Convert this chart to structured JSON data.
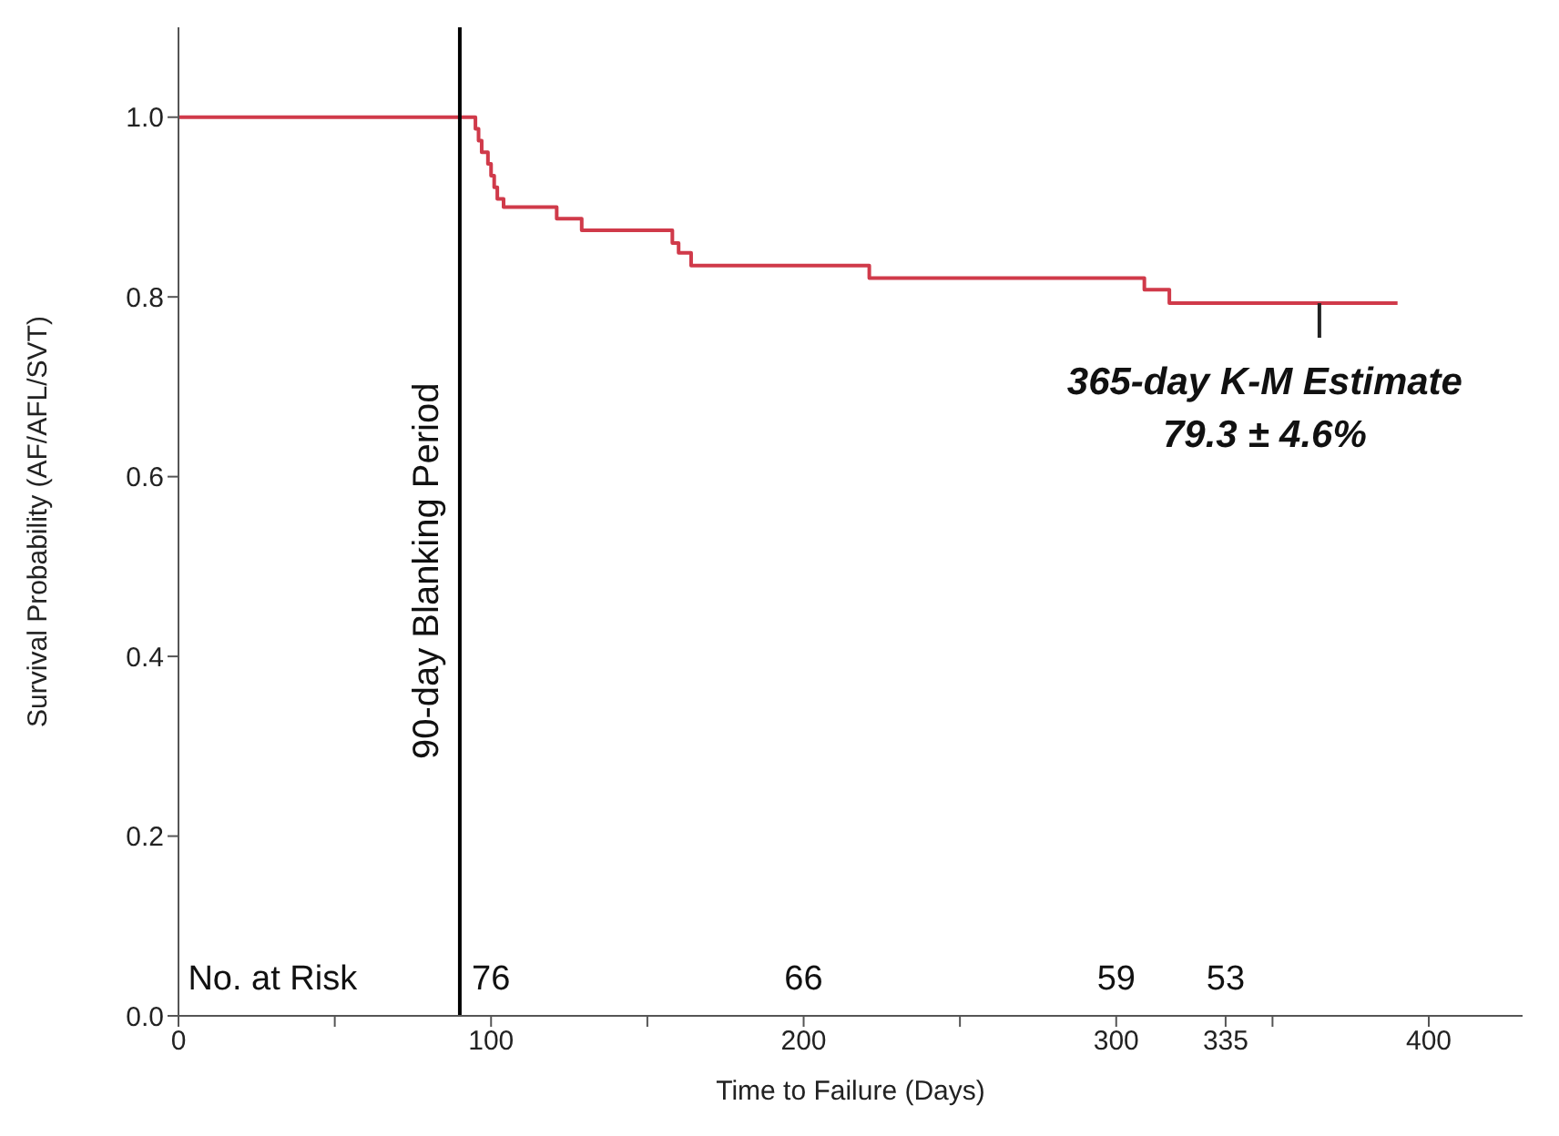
{
  "chart_data": {
    "type": "step",
    "xlabel": "Time to Failure (Days)",
    "ylabel": "Survival Probability (AF/AFL/SVT)",
    "xlim": [
      0,
      430
    ],
    "ylim": [
      0,
      1.1
    ],
    "xticks": [
      0,
      {
        "value": 50,
        "label": null
      },
      100,
      {
        "value": 150,
        "label": null
      },
      200,
      {
        "value": 250,
        "label": null
      },
      300,
      335,
      {
        "value": 350,
        "label": null
      },
      400
    ],
    "yticks": [
      {
        "value": 0,
        "label": "0.0"
      },
      {
        "value": 0.2,
        "label": "0.2"
      },
      {
        "value": 0.4,
        "label": "0.4"
      },
      {
        "value": 0.6,
        "label": "0.6"
      },
      {
        "value": 0.8,
        "label": "0.8"
      },
      {
        "value": 1,
        "label": "1.0"
      }
    ],
    "marker": "none",
    "line_style": "solid",
    "series": [
      {
        "color": "#d03a4a",
        "x": [
          0,
          95,
          96,
          97,
          99,
          100,
          101,
          102,
          104,
          121,
          129,
          158,
          160,
          164,
          221,
          309,
          317,
          390
        ],
        "values": [
          1.0,
          0.987,
          0.974,
          0.961,
          0.948,
          0.935,
          0.922,
          0.909,
          0.9,
          0.887,
          0.874,
          0.86,
          0.849,
          0.835,
          0.821,
          0.808,
          0.793,
          0.793
        ]
      }
    ],
    "ref_lines": [
      {
        "axis": "x",
        "value": 90,
        "label": "90-day Blanking Period",
        "color": "#000000"
      }
    ],
    "annotations": [
      {
        "text": "365-day K-M Estimate\n79.3 ± 4.6%",
        "x": 365,
        "y": 0.793
      },
      "No. at Risk",
      "76",
      "66",
      "59",
      "53"
    ]
  }
}
